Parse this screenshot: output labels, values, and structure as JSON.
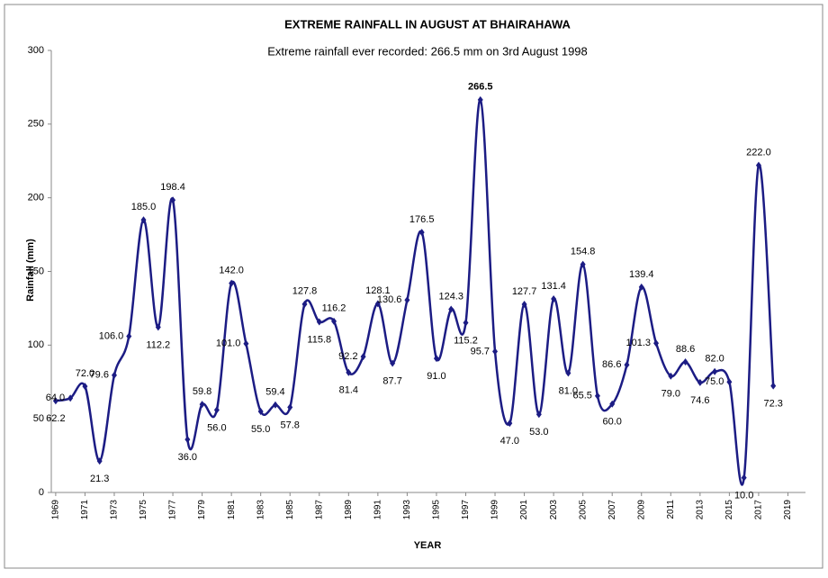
{
  "chart_data": {
    "type": "line",
    "title": "EXTREME  RAINFALL  IN AUGUST  AT BHAIRAHAWA",
    "subtitle": "Extreme rainfall ever recorded: 266.5 mm on 3rd August 1998",
    "x_label": "YEAR",
    "y_label": "Rainfall (mm)",
    "x": [
      1969,
      1970,
      1971,
      1972,
      1973,
      1974,
      1975,
      1976,
      1977,
      1978,
      1979,
      1980,
      1981,
      1982,
      1983,
      1984,
      1985,
      1986,
      1987,
      1988,
      1989,
      1990,
      1991,
      1992,
      1993,
      1994,
      1995,
      1996,
      1997,
      1998,
      1999,
      2000,
      2001,
      2002,
      2003,
      2004,
      2005,
      2006,
      2007,
      2008,
      2009,
      2010,
      2011,
      2012,
      2013,
      2014,
      2015,
      2016,
      2017,
      2018
    ],
    "series": [
      {
        "name": "Rainfall",
        "color": "#1c1c84",
        "values": [
          62.2,
          64.0,
          72.0,
          21.3,
          79.6,
          106.0,
          185.0,
          112.2,
          198.4,
          36.0,
          59.8,
          56.0,
          142.0,
          101.0,
          55.0,
          59.4,
          57.8,
          127.8,
          115.8,
          116.2,
          81.4,
          92.2,
          128.1,
          87.7,
          130.6,
          176.5,
          91.0,
          124.3,
          115.2,
          266.5,
          95.7,
          47.0,
          127.7,
          53.0,
          131.4,
          81.0,
          154.8,
          65.5,
          60.0,
          86.6,
          139.4,
          101.3,
          79.0,
          88.6,
          74.6,
          82.0,
          75.0,
          10.0,
          222.0,
          72.3
        ],
        "value_labels": [
          "62.2",
          "64.0",
          "72.0",
          "21.3",
          "79.6",
          "106.0",
          "185.0",
          "112.2",
          "198.4",
          "36.0",
          "59.8",
          "56.0",
          "142.0",
          "101.0",
          "55.0",
          "59.4",
          "57.8",
          "127.8",
          "115.8",
          "116.2",
          "81.4",
          "92.2",
          "128.1",
          "87.7",
          "130.6",
          "176.5",
          "91.0",
          "124.3",
          "115.2",
          "266.5",
          "95.7",
          "47.0",
          "127.7",
          "53.0",
          "131.4",
          "81.0",
          "154.8",
          "65.5",
          "60.0",
          "86.6",
          "139.4",
          "101.3",
          "79.0",
          "88.6",
          "74.6",
          "82.0",
          "75.0",
          "10.0",
          "222.0",
          "72.3"
        ]
      }
    ],
    "xlim": [
      1968.7,
      2020.2
    ],
    "xticks": [
      1969,
      1971,
      1973,
      1975,
      1977,
      1979,
      1981,
      1983,
      1985,
      1987,
      1989,
      1991,
      1993,
      1995,
      1997,
      1999,
      2001,
      2003,
      2005,
      2007,
      2009,
      2011,
      2013,
      2015,
      2017,
      2019
    ],
    "ylim": [
      0,
      300
    ],
    "yticks": [
      0,
      50,
      100,
      150,
      200,
      250,
      300
    ]
  }
}
